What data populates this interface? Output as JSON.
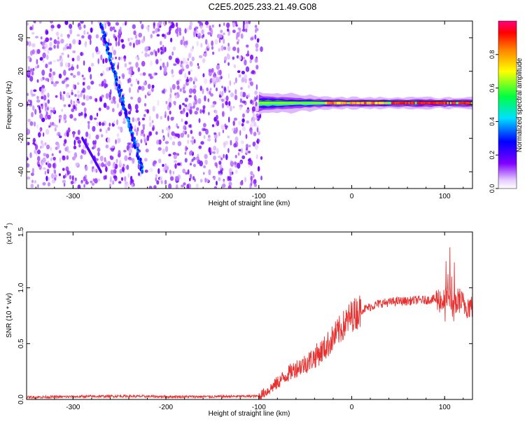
{
  "title": "C2E5.2025.233.21.49.G08",
  "chart_data": [
    {
      "type": "heatmap",
      "name": "spectrogram",
      "xlabel": "Height of straight line (km)",
      "ylabel": "Frequency (Hz)",
      "xlim": [
        -350,
        130
      ],
      "ylim": [
        -50,
        50
      ],
      "xticks": [
        -300,
        -200,
        -100,
        0,
        100
      ],
      "xtick_labels": [
        "-300",
        "-200",
        "-100",
        "0",
        "100"
      ],
      "yticks": [
        -40,
        -20,
        0,
        20,
        40
      ],
      "ytick_labels": [
        "-40",
        "-20",
        "0",
        "20",
        "40"
      ],
      "colorbar": {
        "label": "Normalized spectral amplitude",
        "range": [
          0,
          1
        ],
        "ticks": [
          0.0,
          0.2,
          0.4,
          0.6,
          0.8
        ],
        "tick_labels": [
          "0.0",
          "0.2",
          "0.4",
          "0.6",
          "0.8"
        ]
      },
      "noise_region_x": [
        -350,
        -97
      ],
      "carrier_line": {
        "x_start": -100,
        "x_end": 130,
        "frequency": 1,
        "peak_amplitude": 0.95
      },
      "diagonal_track": {
        "x": [
          -270,
          -225
        ],
        "frequency": [
          48,
          -40
        ]
      },
      "faint_track": {
        "x": [
          -290,
          -270
        ],
        "frequency": [
          -20,
          -40
        ]
      }
    },
    {
      "type": "line",
      "name": "snr",
      "xlabel": "Height of straight line (km)",
      "ylabel": "SNR (10 * v/v)",
      "yscale_label": "(x10",
      "yscale_exp": "4",
      "xlim": [
        -350,
        130
      ],
      "ylim": [
        0,
        1.5
      ],
      "xticks": [
        -300,
        -200,
        -100,
        0,
        100
      ],
      "xtick_labels": [
        "-300",
        "-200",
        "-100",
        "0",
        "100"
      ],
      "yticks": [
        0,
        0.5,
        1.0,
        1.5
      ],
      "ytick_labels": [
        "0.0",
        "0.5",
        "1.0",
        "1.5"
      ],
      "color": "#e8302f",
      "series": [
        {
          "name": "SNR",
          "x": [
            -350,
            -300,
            -250,
            -200,
            -150,
            -100,
            -90,
            -80,
            -70,
            -60,
            -50,
            -40,
            -30,
            -20,
            -10,
            0,
            10,
            20,
            30,
            40,
            50,
            60,
            70,
            80,
            90,
            100,
            105,
            110,
            115,
            120,
            130
          ],
          "values": [
            0.02,
            0.025,
            0.03,
            0.025,
            0.025,
            0.03,
            0.08,
            0.15,
            0.22,
            0.28,
            0.32,
            0.38,
            0.45,
            0.55,
            0.65,
            0.75,
            0.8,
            0.83,
            0.86,
            0.87,
            0.88,
            0.88,
            0.89,
            0.89,
            0.9,
            0.88,
            0.95,
            0.8,
            0.9,
            0.85,
            0.83
          ]
        }
      ]
    }
  ]
}
